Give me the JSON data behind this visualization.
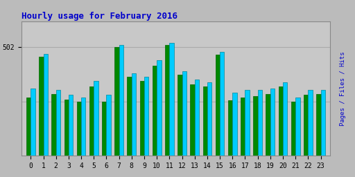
{
  "title": "Hourly usage for February 2016",
  "title_color": "#0000cc",
  "title_fontsize": 9,
  "background_color": "#bbbbbb",
  "plot_bg_color": "#c8c8c8",
  "ytick_label": "502",
  "ytick_value": 502,
  "ylim_max": 620,
  "hours": [
    0,
    1,
    2,
    3,
    4,
    5,
    6,
    7,
    8,
    9,
    10,
    11,
    12,
    13,
    14,
    15,
    16,
    17,
    18,
    19,
    20,
    21,
    22,
    23
  ],
  "green_values": [
    270,
    455,
    285,
    260,
    250,
    320,
    250,
    500,
    365,
    345,
    415,
    510,
    375,
    330,
    320,
    465,
    255,
    270,
    275,
    285,
    320,
    250,
    280,
    285
  ],
  "cyan_values": [
    310,
    470,
    305,
    280,
    270,
    345,
    280,
    510,
    380,
    365,
    440,
    520,
    390,
    350,
    340,
    480,
    290,
    305,
    305,
    310,
    340,
    270,
    305,
    305
  ],
  "bar_color_green": "#008800",
  "bar_color_cyan": "#00ccff",
  "bar_edge_green": "#006600",
  "bar_edge_cyan": "#008899",
  "bar_width": 0.35,
  "font_family": "monospace",
  "grid_color": "#aaaaaa",
  "xlabel_fontsize": 7,
  "ylabel_fontsize": 6.5,
  "right_label": "Pages / Files / Hits",
  "right_label_pages_color": "#0000cc",
  "right_label_files_color": "#008800",
  "right_label_hits_color": "#00aacc"
}
